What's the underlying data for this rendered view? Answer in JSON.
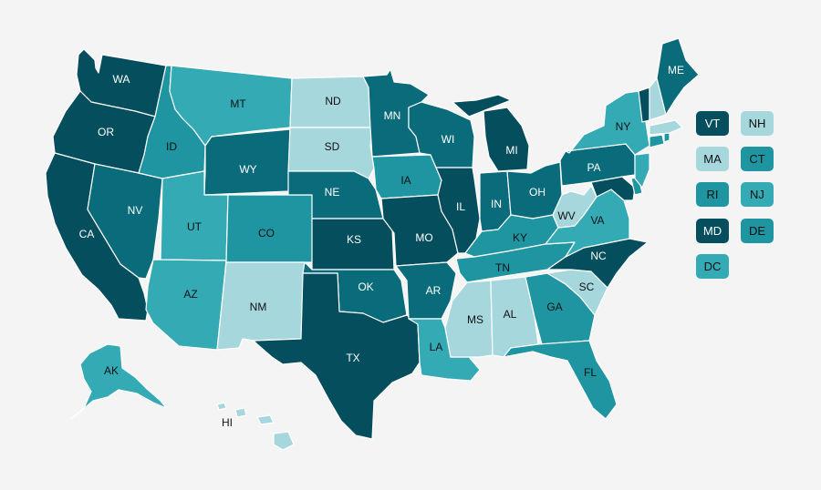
{
  "palette": {
    "darkest": "#044e5e",
    "dark": "#0a6b7b",
    "mid": "#1f95a1",
    "light": "#34aab5",
    "pale": "#a6d7dd"
  },
  "states": [
    {
      "id": "WA",
      "label": "WA",
      "tone": "darkest"
    },
    {
      "id": "OR",
      "label": "OR",
      "tone": "darkest"
    },
    {
      "id": "CA",
      "label": "CA",
      "tone": "darkest"
    },
    {
      "id": "NV",
      "label": "NV",
      "tone": "dark"
    },
    {
      "id": "ID",
      "label": "ID",
      "tone": "mid"
    },
    {
      "id": "MT",
      "label": "MT",
      "tone": "light"
    },
    {
      "id": "WY",
      "label": "WY",
      "tone": "dark"
    },
    {
      "id": "UT",
      "label": "UT",
      "tone": "light"
    },
    {
      "id": "AZ",
      "label": "AZ",
      "tone": "light"
    },
    {
      "id": "CO",
      "label": "CO",
      "tone": "mid"
    },
    {
      "id": "NM",
      "label": "NM",
      "tone": "pale"
    },
    {
      "id": "ND",
      "label": "ND",
      "tone": "pale"
    },
    {
      "id": "SD",
      "label": "SD",
      "tone": "pale"
    },
    {
      "id": "NE",
      "label": "NE",
      "tone": "dark"
    },
    {
      "id": "KS",
      "label": "KS",
      "tone": "darkest"
    },
    {
      "id": "OK",
      "label": "OK",
      "tone": "dark"
    },
    {
      "id": "TX",
      "label": "TX",
      "tone": "darkest"
    },
    {
      "id": "MN",
      "label": "MN",
      "tone": "dark"
    },
    {
      "id": "IA",
      "label": "IA",
      "tone": "mid"
    },
    {
      "id": "MO",
      "label": "MO",
      "tone": "darkest"
    },
    {
      "id": "AR",
      "label": "AR",
      "tone": "dark"
    },
    {
      "id": "LA",
      "label": "LA",
      "tone": "light"
    },
    {
      "id": "WI",
      "label": "WI",
      "tone": "dark"
    },
    {
      "id": "IL",
      "label": "IL",
      "tone": "darkest"
    },
    {
      "id": "MI",
      "label": "MI",
      "tone": "darkest"
    },
    {
      "id": "IN",
      "label": "IN",
      "tone": "dark"
    },
    {
      "id": "OH",
      "label": "OH",
      "tone": "dark"
    },
    {
      "id": "KY",
      "label": "KY",
      "tone": "mid"
    },
    {
      "id": "TN",
      "label": "TN",
      "tone": "mid"
    },
    {
      "id": "MS",
      "label": "MS",
      "tone": "pale"
    },
    {
      "id": "AL",
      "label": "AL",
      "tone": "pale"
    },
    {
      "id": "GA",
      "label": "GA",
      "tone": "mid"
    },
    {
      "id": "FL",
      "label": "FL",
      "tone": "mid"
    },
    {
      "id": "SC",
      "label": "SC",
      "tone": "pale"
    },
    {
      "id": "NC",
      "label": "NC",
      "tone": "darkest"
    },
    {
      "id": "VA",
      "label": "VA",
      "tone": "light"
    },
    {
      "id": "WV",
      "label": "WV",
      "tone": "pale"
    },
    {
      "id": "PA",
      "label": "PA",
      "tone": "dark"
    },
    {
      "id": "NY",
      "label": "NY",
      "tone": "light"
    },
    {
      "id": "ME",
      "label": "ME",
      "tone": "dark"
    },
    {
      "id": "AK",
      "label": "AK",
      "tone": "light"
    },
    {
      "id": "HI",
      "label": "HI",
      "tone": "pale"
    }
  ],
  "small_states": [
    {
      "id": "VT",
      "label": "VT",
      "tone": "darkest"
    },
    {
      "id": "NH",
      "label": "NH",
      "tone": "pale"
    },
    {
      "id": "MA",
      "label": "MA",
      "tone": "pale"
    },
    {
      "id": "CT",
      "label": "CT",
      "tone": "mid"
    },
    {
      "id": "RI",
      "label": "RI",
      "tone": "mid"
    },
    {
      "id": "NJ",
      "label": "NJ",
      "tone": "light"
    },
    {
      "id": "MD",
      "label": "MD",
      "tone": "darkest"
    },
    {
      "id": "DE",
      "label": "DE",
      "tone": "mid"
    },
    {
      "id": "DC",
      "label": "DC",
      "tone": "light"
    }
  ]
}
